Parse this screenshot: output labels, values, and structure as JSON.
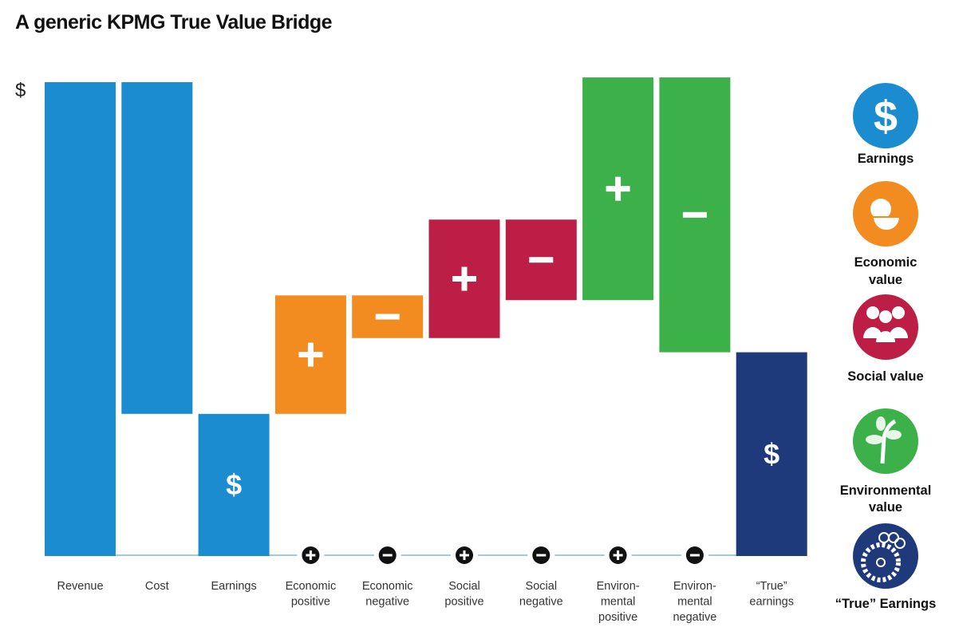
{
  "chart_data": {
    "type": "waterfall",
    "title": "A generic KPMG True Value Bridge",
    "ylabel": "$",
    "ylim": [
      0,
      105
    ],
    "grid": false,
    "categories": [
      [
        "Revenue"
      ],
      [
        "Cost"
      ],
      [
        "Earnings"
      ],
      [
        "Economic",
        "positive"
      ],
      [
        "Economic",
        "negative"
      ],
      [
        "Social",
        "positive"
      ],
      [
        "Social",
        "negative"
      ],
      [
        "Environ-",
        "mental",
        "positive"
      ],
      [
        "Environ-",
        "mental",
        "negative"
      ],
      [
        "“True”",
        "earnings"
      ]
    ],
    "bars": [
      {
        "start": 0,
        "end": 100,
        "color": "#1a8ccf",
        "symbol": "",
        "marker": ""
      },
      {
        "start": 100,
        "end": 30,
        "color": "#1a8ccf",
        "symbol": "",
        "marker": ""
      },
      {
        "start": 0,
        "end": 30,
        "color": "#1a8ccf",
        "symbol": "$",
        "marker": ""
      },
      {
        "start": 30,
        "end": 55,
        "color": "#f28b20",
        "symbol": "+",
        "marker": "+"
      },
      {
        "start": 55,
        "end": 46,
        "color": "#f28b20",
        "symbol": "−",
        "marker": "−"
      },
      {
        "start": 46,
        "end": 71,
        "color": "#bc1e45",
        "symbol": "+",
        "marker": "+"
      },
      {
        "start": 71,
        "end": 54,
        "color": "#bc1e45",
        "symbol": "−",
        "marker": "−"
      },
      {
        "start": 54,
        "end": 101,
        "color": "#3cb14a",
        "symbol": "+",
        "marker": "+"
      },
      {
        "start": 101,
        "end": 43,
        "color": "#3cb14a",
        "symbol": "−",
        "marker": "−"
      },
      {
        "start": 0,
        "end": 43,
        "color": "#1f3a7a",
        "symbol": "$",
        "marker": ""
      }
    ],
    "legend_position": "right",
    "legend": [
      {
        "label": [
          "Earnings"
        ],
        "color": "#1a8ccf",
        "icon": "dollar-icon"
      },
      {
        "label": [
          "Economic",
          "value"
        ],
        "color": "#f28b20",
        "icon": "money-bag-bowl-icon"
      },
      {
        "label": [
          "Social value"
        ],
        "color": "#bc1e45",
        "icon": "people-icon"
      },
      {
        "label": [
          "Environmental",
          "value"
        ],
        "color": "#3cb14a",
        "icon": "plant-icon"
      },
      {
        "label": [
          "“True” Earnings"
        ],
        "color": "#1f3a7a",
        "icon": "gears-icon"
      }
    ]
  }
}
